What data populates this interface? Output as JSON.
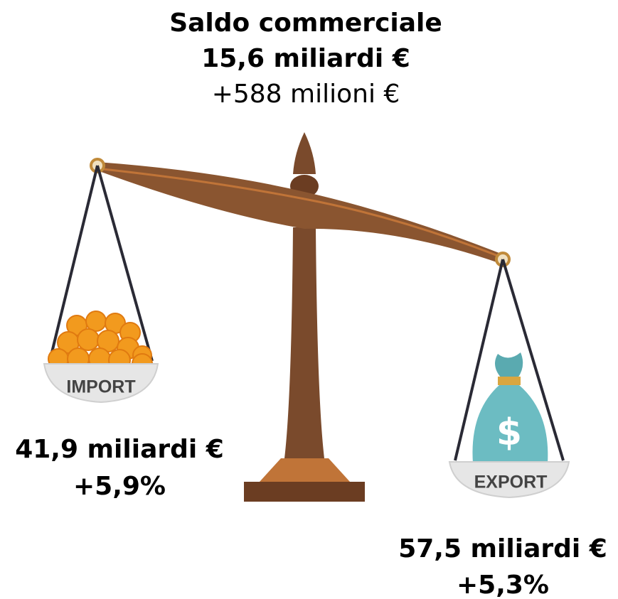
{
  "title": {
    "heading": "Saldo commerciale",
    "value": "15,6 miliardi €",
    "change": "+588 milioni €"
  },
  "import": {
    "label": "IMPORT",
    "value": "41,9 miliardi €",
    "change": "+5,9%"
  },
  "export": {
    "label": "EXPORT",
    "value": "57,5 miliardi €",
    "change": "+5,3%"
  }
}
